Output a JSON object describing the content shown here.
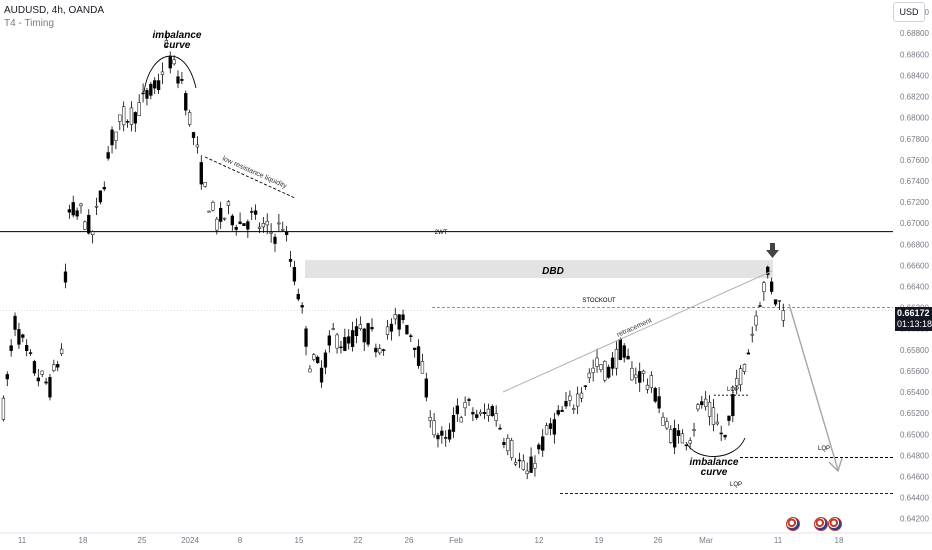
{
  "header": {
    "symbol": "AUDUSD, 4h, OANDA",
    "indicator": "T4 - Timing"
  },
  "currency_button": "USD",
  "last_price": {
    "value": "0.66172",
    "countdown": "01:13:18"
  },
  "colors": {
    "up": "#ffffff",
    "down": "#000000",
    "outline": "#000000",
    "zone": "#e3e3e3",
    "stockout_line": "#f23645",
    "arrow_line": "#a6a6a6",
    "axis_text": "#787b86"
  },
  "chart_data": {
    "type": "candlestick",
    "ylim": [
      0.6415,
      0.6902
    ],
    "y_ticks": [
      "0.69000",
      "0.68800",
      "0.68600",
      "0.68400",
      "0.68200",
      "0.68000",
      "0.67800",
      "0.67600",
      "0.67400",
      "0.67200",
      "0.67000",
      "0.66800",
      "0.66600",
      "0.66400",
      "0.66200",
      "0.66000",
      "0.65800",
      "0.65600",
      "0.65400",
      "0.65200",
      "0.65000",
      "0.64800",
      "0.64600",
      "0.64400",
      "0.64200"
    ],
    "y_tick_values": [
      0.69,
      0.688,
      0.686,
      0.684,
      0.682,
      0.68,
      0.678,
      0.676,
      0.674,
      0.672,
      0.67,
      0.668,
      0.666,
      0.664,
      0.662,
      0.66,
      0.658,
      0.656,
      0.654,
      0.652,
      0.65,
      0.648,
      0.646,
      0.644,
      0.642
    ],
    "x_ticks": [
      "11",
      "18",
      "25",
      "2024",
      "8",
      "15",
      "22",
      "26",
      "Feb",
      "12",
      "19",
      "26",
      "Mar",
      "11",
      "18"
    ],
    "path_anchors": [
      [
        0,
        0.6525
      ],
      [
        3,
        0.6605
      ],
      [
        6,
        0.6575
      ],
      [
        9,
        0.6555
      ],
      [
        12,
        0.6545
      ],
      [
        15,
        0.658
      ],
      [
        17,
        0.671
      ],
      [
        20,
        0.671
      ],
      [
        23,
        0.669
      ],
      [
        25,
        0.6725
      ],
      [
        28,
        0.678
      ],
      [
        31,
        0.68
      ],
      [
        34,
        0.6805
      ],
      [
        37,
        0.682
      ],
      [
        40,
        0.683
      ],
      [
        42,
        0.6865
      ],
      [
        44,
        0.6845
      ],
      [
        46,
        0.6835
      ],
      [
        48,
        0.68
      ],
      [
        50,
        0.6765
      ],
      [
        52,
        0.673
      ],
      [
        55,
        0.67
      ],
      [
        58,
        0.671
      ],
      [
        61,
        0.67
      ],
      [
        64,
        0.6705
      ],
      [
        67,
        0.6695
      ],
      [
        70,
        0.669
      ],
      [
        72,
        0.67
      ],
      [
        74,
        0.6665
      ],
      [
        76,
        0.6635
      ],
      [
        79,
        0.657
      ],
      [
        82,
        0.656
      ],
      [
        85,
        0.6595
      ],
      [
        88,
        0.6585
      ],
      [
        91,
        0.6595
      ],
      [
        94,
        0.6595
      ],
      [
        97,
        0.6585
      ],
      [
        100,
        0.66
      ],
      [
        103,
        0.661
      ],
      [
        106,
        0.659
      ],
      [
        108,
        0.656
      ],
      [
        111,
        0.6505
      ],
      [
        114,
        0.649
      ],
      [
        117,
        0.652
      ],
      [
        120,
        0.6525
      ],
      [
        123,
        0.6515
      ],
      [
        126,
        0.6525
      ],
      [
        129,
        0.65
      ],
      [
        132,
        0.648
      ],
      [
        135,
        0.646
      ],
      [
        138,
        0.6485
      ],
      [
        141,
        0.6505
      ],
      [
        144,
        0.652
      ],
      [
        147,
        0.653
      ],
      [
        150,
        0.655
      ],
      [
        153,
        0.6565
      ],
      [
        156,
        0.656
      ],
      [
        159,
        0.658
      ],
      [
        162,
        0.656
      ],
      [
        165,
        0.6555
      ],
      [
        168,
        0.654
      ],
      [
        171,
        0.6505
      ],
      [
        174,
        0.6495
      ],
      [
        177,
        0.65
      ],
      [
        180,
        0.653
      ],
      [
        183,
        0.6515
      ],
      [
        186,
        0.6495
      ],
      [
        189,
        0.6545
      ],
      [
        192,
        0.658
      ],
      [
        195,
        0.663
      ],
      [
        197,
        0.665
      ],
      [
        199,
        0.663
      ],
      [
        201,
        0.6617
      ]
    ],
    "annotations": {
      "imbalance_curve_top": [
        "imbalance",
        "curve"
      ],
      "imbalance_curve_bottom": [
        "imbalance",
        "curve"
      ],
      "low_resistance": "low resistance liquidity",
      "key_level": "2WT",
      "zone_label": "DBD",
      "stockout": "STOCKOUT",
      "retracement": "retracement",
      "lqp_labels": [
        "LQP",
        "LQP",
        "LQP"
      ]
    },
    "levels": {
      "key_level": 0.6692,
      "zone_top": 0.6665,
      "zone_bottom": 0.6648,
      "stockout": 0.662,
      "lqp_upper": 0.6537,
      "lqp_mid": 0.6478,
      "lqp_low": 0.6444
    },
    "grid": false,
    "legend": "none"
  }
}
